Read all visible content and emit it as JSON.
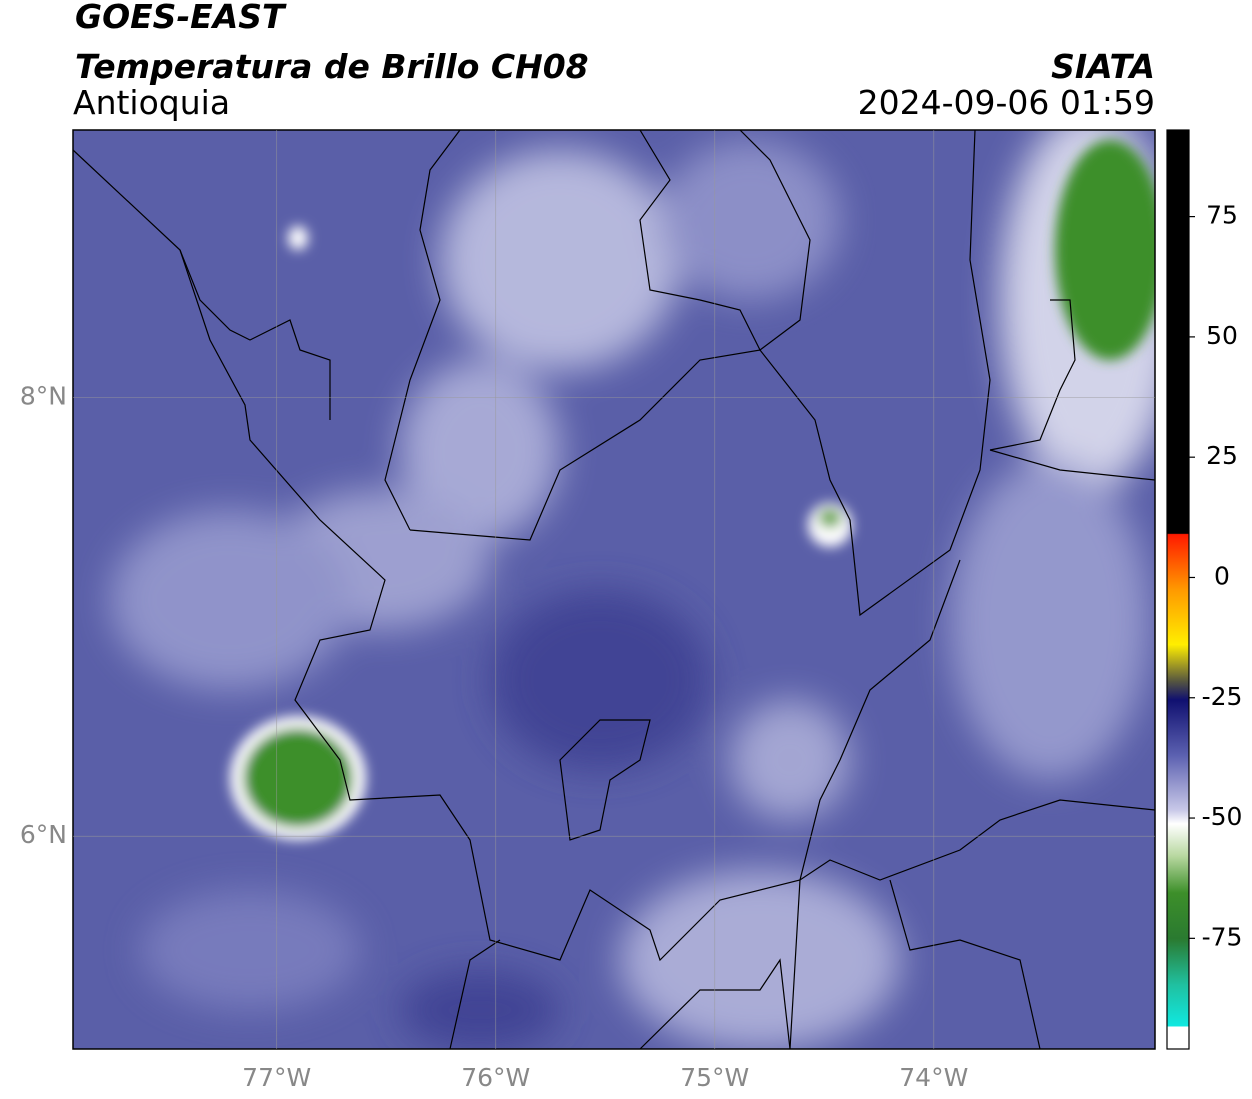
{
  "chart_data": {
    "type": "map",
    "title": "GOES-EAST",
    "subtitle": "Temperatura de Brillo CH08",
    "region": "Antioquia",
    "source": "SIATA",
    "datetime": "2024-09-06 01:59",
    "xlim": [
      -77.93,
      -72.99
    ],
    "ylim": [
      5.03,
      9.22
    ],
    "xticks": [
      {
        "value": -77,
        "label": "77°W"
      },
      {
        "value": -76,
        "label": "76°W"
      },
      {
        "value": -75,
        "label": "75°W"
      },
      {
        "value": -74,
        "label": "74°W"
      }
    ],
    "yticks": [
      {
        "value": 6,
        "label": "6°N"
      },
      {
        "value": 8,
        "label": "8°N"
      }
    ],
    "grid": true,
    "clim": [
      -98,
      93
    ],
    "cticks": [
      75,
      50,
      25,
      0,
      -25,
      -50,
      -75
    ]
  }
}
